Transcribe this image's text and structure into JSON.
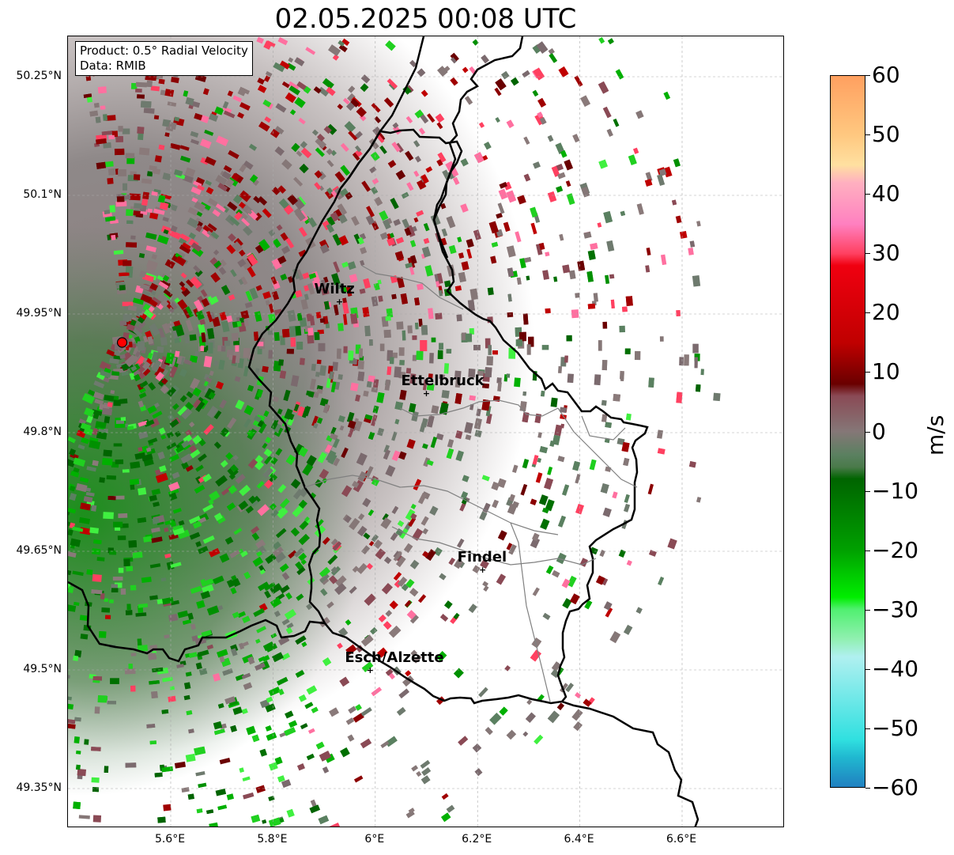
{
  "title": "02.05.2025 00:08 UTC",
  "info": {
    "product": "Product: 0.5° Radial Velocity",
    "data": "Data: RMIB"
  },
  "map": {
    "lon_range": [
      5.4,
      6.8
    ],
    "lat_range": [
      49.3,
      50.3
    ],
    "x_ticks": [
      "5.6°E",
      "5.8°E",
      "6°E",
      "6.2°E",
      "6.4°E",
      "6.6°E"
    ],
    "x_tick_values": [
      5.6,
      5.8,
      6.0,
      6.2,
      6.4,
      6.6
    ],
    "y_ticks": [
      "50.25°N",
      "50.1°N",
      "49.95°N",
      "49.8°N",
      "49.65°N",
      "49.5°N",
      "49.35°N"
    ],
    "y_tick_values": [
      50.25,
      50.1,
      49.95,
      49.8,
      49.65,
      49.5,
      49.35
    ],
    "gridlines": true,
    "radar_site": {
      "lon": 5.505,
      "lat": 49.914,
      "color": "#ff0000"
    },
    "cities": [
      {
        "name": "Wiltz",
        "lon": 5.93,
        "lat": 49.966
      },
      {
        "name": "Ettelbruck",
        "lon": 6.1,
        "lat": 49.85
      },
      {
        "name": "Findel",
        "lon": 6.21,
        "lat": 49.627
      },
      {
        "name": "Esch/Alzette",
        "lon": 5.99,
        "lat": 49.5
      }
    ]
  },
  "colorbar": {
    "label": "m/s",
    "ticks": [
      "60",
      "50",
      "40",
      "30",
      "20",
      "10",
      "0",
      "−10",
      "−20",
      "−30",
      "−40",
      "−50",
      "−60"
    ],
    "range": [
      -60,
      60
    ],
    "stops": [
      {
        "v": 60,
        "c": "#ffa060"
      },
      {
        "v": 50,
        "c": "#ffc880"
      },
      {
        "v": 45,
        "c": "#ffe0a0"
      },
      {
        "v": 42,
        "c": "#ffb0c0"
      },
      {
        "v": 35,
        "c": "#ff80c0"
      },
      {
        "v": 30,
        "c": "#ff4060"
      },
      {
        "v": 28,
        "c": "#f00010"
      },
      {
        "v": 15,
        "c": "#c00000"
      },
      {
        "v": 8,
        "c": "#6a0000"
      },
      {
        "v": 6,
        "c": "#8a4a55"
      },
      {
        "v": 0,
        "c": "#857777"
      },
      {
        "v": -4,
        "c": "#5a8060"
      },
      {
        "v": -6,
        "c": "#4a7a4a"
      },
      {
        "v": -8,
        "c": "#006400"
      },
      {
        "v": -20,
        "c": "#00a000"
      },
      {
        "v": -28,
        "c": "#00ee00"
      },
      {
        "v": -30,
        "c": "#50f070"
      },
      {
        "v": -35,
        "c": "#90f0b0"
      },
      {
        "v": -38,
        "c": "#b0f0f0"
      },
      {
        "v": -52,
        "c": "#30e0e0"
      },
      {
        "v": -55,
        "c": "#20b8d0"
      },
      {
        "v": -60,
        "c": "#2080c0"
      }
    ]
  },
  "colors": {
    "border": "#000000",
    "admin": "#808080",
    "velocity_toward": "#2e8b2e",
    "velocity_away": "#8b0000",
    "near_zero": "#857777"
  }
}
